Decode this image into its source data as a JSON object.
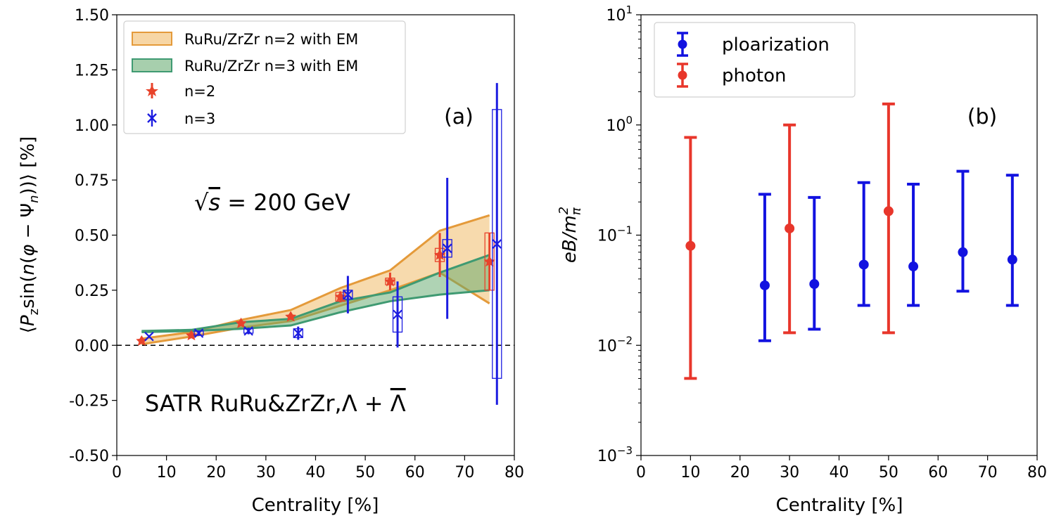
{
  "chart_data": [
    {
      "type": "line",
      "panel_label": "(a)",
      "ylabel": "⟨P_z sin(n(φ − Ψ_n))⟩ [%]",
      "ylabel_parts": {
        "pre": "⟨",
        "p": "P",
        "sub_z": "z",
        "sin": "sin(",
        "n1": "n",
        "mid": "(",
        "phi": "φ",
        "minus": " − Ψ",
        "sub_n": "n",
        "post": "))⟩ [%]"
      },
      "xlabel": "Centrality [%]",
      "xlim": [
        0,
        80
      ],
      "ylim": [
        -0.5,
        1.5
      ],
      "xticks": [
        0,
        10,
        20,
        30,
        40,
        50,
        60,
        70,
        80
      ],
      "xtick_labels": [
        "0",
        "10",
        "20",
        "30",
        "40",
        "50",
        "60",
        "70",
        "80"
      ],
      "yticks": [
        -0.5,
        -0.25,
        0.0,
        0.25,
        0.5,
        0.75,
        1.0,
        1.25,
        1.5
      ],
      "ytick_labels": [
        "-0.50",
        "-0.25",
        "0.00",
        "0.25",
        "0.50",
        "0.75",
        "1.00",
        "1.25",
        "1.50"
      ],
      "reference_line_y": 0,
      "annotations": {
        "energy": {
          "pre": "√",
          "s": "s",
          "post": " = 200 GeV"
        },
        "collision": {
          "text": "SATR RuRu&ZrZr,Λ + ",
          "lambda_bar": "Λ"
        }
      },
      "legend": {
        "position": "top-left",
        "entries": [
          {
            "label": "RuRu/ZrZr n=2 with EM",
            "kind": "band",
            "color": "#f0b55b"
          },
          {
            "label": "RuRu/ZrZr n=3 with EM",
            "kind": "band",
            "color": "#5fa86a"
          },
          {
            "label": "n=2",
            "kind": "marker",
            "color": "#e8432b"
          },
          {
            "label": "n=3",
            "kind": "marker",
            "color": "#1c1ce0"
          }
        ]
      },
      "bands": [
        {
          "name": "RuRu/ZrZr n=2 with EM",
          "fill": "#f0b55b",
          "edge": "#e49a3a",
          "x": [
            5,
            15,
            25,
            35,
            45,
            55,
            65,
            75
          ],
          "lower": [
            0.005,
            0.04,
            0.08,
            0.11,
            0.18,
            0.25,
            0.33,
            0.19
          ],
          "upper": [
            0.03,
            0.06,
            0.115,
            0.16,
            0.26,
            0.34,
            0.52,
            0.59
          ]
        },
        {
          "name": "RuRu/ZrZr n=3 with EM",
          "fill": "#5fa86a",
          "edge": "#3f9a72",
          "x": [
            5,
            15,
            25,
            35,
            45,
            55,
            65,
            75
          ],
          "lower": [
            0.06,
            0.065,
            0.075,
            0.09,
            0.15,
            0.2,
            0.23,
            0.25
          ],
          "upper": [
            0.065,
            0.07,
            0.105,
            0.12,
            0.2,
            0.24,
            0.33,
            0.41
          ]
        }
      ],
      "series": [
        {
          "name": "n=2",
          "marker": "star",
          "color": "#e8432b",
          "x": [
            5,
            15,
            25,
            35,
            45,
            55,
            65,
            75
          ],
          "y": [
            0.02,
            0.045,
            0.1,
            0.13,
            0.22,
            0.29,
            0.41,
            0.38
          ],
          "stat_err": [
            0.005,
            0.005,
            0.007,
            0.01,
            0.025,
            0.04,
            0.1,
            0.13
          ],
          "sys_err": [
            0.0,
            0.0,
            0.0,
            0.0,
            0.02,
            0.015,
            0.03,
            0.13
          ]
        },
        {
          "name": "n=3",
          "marker": "x",
          "color": "#1c1ce0",
          "x": [
            6.5,
            16.5,
            26.5,
            36.5,
            46.5,
            56.5,
            66.5,
            76.5
          ],
          "y": [
            0.04,
            0.055,
            0.065,
            0.055,
            0.23,
            0.14,
            0.44,
            0.46
          ],
          "stat_err": [
            0.006,
            0.01,
            0.015,
            0.03,
            0.085,
            0.15,
            0.32,
            0.73
          ],
          "sys_err": [
            0.0,
            0.01,
            0.01,
            0.02,
            0.02,
            0.08,
            0.04,
            0.61
          ]
        }
      ]
    },
    {
      "type": "scatter",
      "panel_label": "(b)",
      "ylabel": "eB/m_π²",
      "ylabel_parts": {
        "main": "eB/m",
        "sub": "π",
        "sup": "2"
      },
      "xlabel": "Centrality [%]",
      "xlim": [
        0,
        80
      ],
      "yscale": "log",
      "ylim": [
        0.001,
        10
      ],
      "xticks": [
        0,
        10,
        20,
        30,
        40,
        50,
        60,
        70,
        80
      ],
      "xtick_labels": [
        "0",
        "10",
        "20",
        "30",
        "40",
        "50",
        "60",
        "70",
        "80"
      ],
      "yticks": [
        0.001,
        0.01,
        0.1,
        1,
        10
      ],
      "ytick_bases": [
        "10",
        "10",
        "10",
        "10",
        "10"
      ],
      "ytick_exponents": [
        "−3",
        "−2",
        "−1",
        "0",
        "1"
      ],
      "legend": {
        "position": "top-left",
        "entries": [
          {
            "label": "ploarization",
            "color": "#1212e0"
          },
          {
            "label": "photon",
            "color": "#e8362b"
          }
        ]
      },
      "series": [
        {
          "name": "ploarization",
          "color": "#1212e0",
          "x": [
            25,
            35,
            45,
            55,
            65,
            75
          ],
          "y": [
            0.035,
            0.036,
            0.054,
            0.052,
            0.07,
            0.06
          ],
          "y_low": [
            0.011,
            0.014,
            0.023,
            0.023,
            0.031,
            0.023
          ],
          "y_high": [
            0.235,
            0.22,
            0.3,
            0.29,
            0.38,
            0.35
          ]
        },
        {
          "name": "photon",
          "color": "#e8362b",
          "x": [
            10,
            30,
            50
          ],
          "y": [
            0.08,
            0.115,
            0.165
          ],
          "y_low": [
            0.005,
            0.013,
            0.013
          ],
          "y_high": [
            0.77,
            1.0,
            1.55
          ]
        }
      ]
    }
  ]
}
